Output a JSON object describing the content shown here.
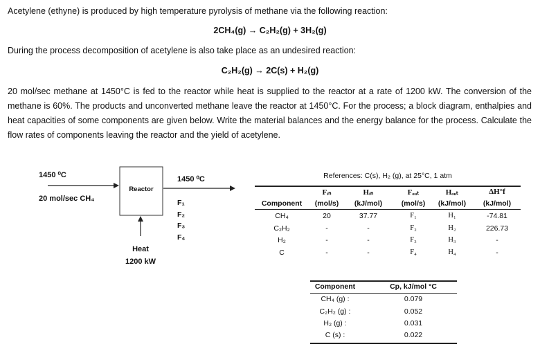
{
  "problem": {
    "intro": "Acetylene (ethyne) is produced by high temperature pyrolysis of methane via the following reaction:",
    "reaction1": "2CH₄(g) → C₂H₂(g) + 3H₂(g)",
    "side_intro": "During the process decomposition of acetylene is also take place as an undesired reaction:",
    "reaction2": "C₂H₂(g) → 2C(s) + H₂(g)",
    "paragraph": "20 mol/sec methane at 1450°C is fed to the reactor while heat is supplied to the reactor at a rate of 1200 kW. The conversion of the methane is 60%. The products and unconverted methane leave the reactor at 1450°C. For the process; a block diagram, enthalpies and heat capacities of some components are given below. Write the material balances and the energy balance for the process. Calculate the flow rates of components leaving the reactor and the yield of acetylene."
  },
  "diagram": {
    "inlet_temp": "1450 ⁰C",
    "inlet_flow": "20 mol/sec CH₄",
    "reactor": "Reactor",
    "outlet_temp": "1450 ⁰C",
    "outlet_streams": [
      "F₁",
      "F₂",
      "F₃",
      "F₄"
    ],
    "heat_label": "Heat",
    "heat_value": "1200 kW"
  },
  "enthalpy_table": {
    "caption": "References: C(s), H₂ (g), at 25°C, 1 atm",
    "headers": [
      [
        "",
        "Component"
      ],
      [
        "Fᵢₙ",
        "(mol/s)"
      ],
      [
        "Hᵢₙ",
        "(kJ/mol)"
      ],
      [
        "Fₒᵤₜ",
        "(mol/s)"
      ],
      [
        "Hₒᵤₜ",
        "(kJ/mol)"
      ],
      [
        "ΔH°f",
        "(kJ/mol)"
      ]
    ],
    "rows": [
      [
        "CH₄",
        "20",
        "37.77",
        "F₁",
        "H₁",
        "-74.81"
      ],
      [
        "C₂H₂",
        "-",
        "-",
        "F₂",
        "H₂",
        "226.73"
      ],
      [
        "H₂",
        "-",
        "-",
        "F₃",
        "H₃",
        "-"
      ],
      [
        "C",
        "-",
        "-",
        "F₄",
        "H₄",
        "-"
      ]
    ]
  },
  "cp_table": {
    "headers": [
      "Component",
      "Cp, kJ/mol °C"
    ],
    "rows": [
      [
        "CH₄ (g) :",
        "0.079"
      ],
      [
        "C₂H₂ (g) :",
        "0.052"
      ],
      [
        "H₂ (g) :",
        "0.031"
      ],
      [
        "C (s) :",
        "0.022"
      ]
    ]
  }
}
